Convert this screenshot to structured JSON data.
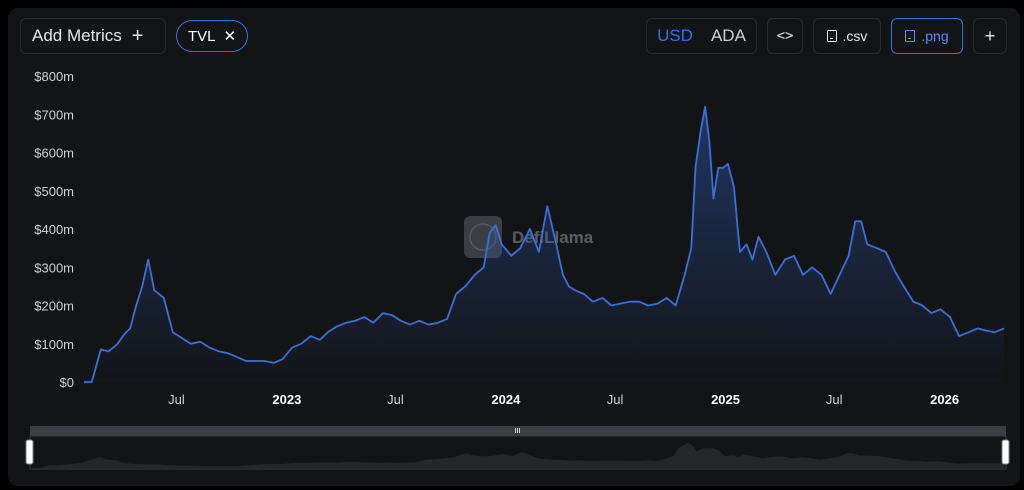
{
  "toolbar": {
    "add_metrics_label": "Add Metrics",
    "add_metrics_icon": "+",
    "metric_chip_label": "TVL",
    "metric_chip_remove_icon": "✕",
    "currency_options": [
      "USD",
      "ADA"
    ],
    "currency_selected": "USD",
    "embed_label": "<>",
    "csv_label": ".csv",
    "png_label": ".png",
    "more_label": "+"
  },
  "watermark": "DefiLlama",
  "colors": {
    "accent": "#2f6fe6",
    "line": "#3b6fd8",
    "background": "#131416"
  },
  "chart_data": {
    "type": "area",
    "series": [
      {
        "x": [
          "2022-01-28",
          "2022-02-10",
          "2022-02-25",
          "2022-03-10",
          "2022-03-25",
          "2022-04-05",
          "2022-04-15",
          "2022-04-25",
          "2022-05-05",
          "2022-05-15",
          "2022-05-25",
          "2022-06-10",
          "2022-06-25",
          "2022-07-10",
          "2022-07-25",
          "2022-08-10",
          "2022-08-25",
          "2022-09-10",
          "2022-09-25",
          "2022-10-10",
          "2022-10-25",
          "2022-11-10",
          "2022-11-25",
          "2022-12-10",
          "2022-12-25",
          "2023-01-10",
          "2023-01-25",
          "2023-02-10",
          "2023-02-25",
          "2023-03-10",
          "2023-03-25",
          "2023-04-10",
          "2023-04-25",
          "2023-05-10",
          "2023-05-25",
          "2023-06-10",
          "2023-06-25",
          "2023-07-10",
          "2023-07-25",
          "2023-08-10",
          "2023-08-25",
          "2023-09-10",
          "2023-09-25",
          "2023-10-10",
          "2023-10-25",
          "2023-11-10",
          "2023-11-25",
          "2023-12-05",
          "2023-12-15",
          "2023-12-25",
          "2024-01-10",
          "2024-01-25",
          "2024-02-10",
          "2024-02-25",
          "2024-03-10",
          "2024-03-25",
          "2024-04-05",
          "2024-04-15",
          "2024-04-25",
          "2024-05-10",
          "2024-05-25",
          "2024-06-10",
          "2024-06-25",
          "2024-07-10",
          "2024-07-25",
          "2024-08-10",
          "2024-08-25",
          "2024-09-10",
          "2024-09-25",
          "2024-10-10",
          "2024-10-25",
          "2024-11-05",
          "2024-11-12",
          "2024-11-20",
          "2024-11-28",
          "2024-12-05",
          "2024-12-12",
          "2024-12-20",
          "2024-12-28",
          "2025-01-05",
          "2025-01-15",
          "2025-01-25",
          "2025-02-05",
          "2025-02-15",
          "2025-02-25",
          "2025-03-10",
          "2025-03-25",
          "2025-04-10",
          "2025-04-25",
          "2025-05-10",
          "2025-05-25",
          "2025-06-10",
          "2025-06-25",
          "2025-07-10",
          "2025-07-25",
          "2025-08-05",
          "2025-08-15",
          "2025-08-25",
          "2025-09-10",
          "2025-09-25",
          "2025-10-10",
          "2025-10-25",
          "2025-11-10",
          "2025-11-25",
          "2025-12-10",
          "2025-12-25",
          "2026-01-10",
          "2026-01-25",
          "2026-02-10",
          "2026-02-25",
          "2026-03-10",
          "2026-03-25",
          "2026-04-10"
        ],
        "values": [
          0,
          0,
          85,
          80,
          100,
          125,
          140,
          200,
          250,
          320,
          240,
          220,
          130,
          115,
          100,
          105,
          90,
          80,
          75,
          65,
          55,
          55,
          55,
          50,
          60,
          90,
          100,
          120,
          110,
          130,
          145,
          155,
          160,
          170,
          155,
          180,
          175,
          160,
          150,
          160,
          150,
          155,
          165,
          230,
          250,
          280,
          300,
          390,
          410,
          360,
          330,
          350,
          400,
          340,
          460,
          360,
          280,
          250,
          240,
          230,
          210,
          220,
          200,
          205,
          210,
          210,
          200,
          205,
          220,
          200,
          280,
          350,
          560,
          650,
          720,
          630,
          480,
          560,
          560,
          570,
          510,
          340,
          360,
          320,
          380,
          340,
          280,
          320,
          330,
          280,
          300,
          280,
          230,
          280,
          330,
          420,
          420,
          360,
          350,
          340,
          290,
          250,
          210,
          200,
          180,
          190,
          170,
          120,
          130,
          140,
          135,
          130,
          140
        ]
      }
    ],
    "y_ticks": [
      "$0",
      "$100m",
      "$200m",
      "$300m",
      "$400m",
      "$500m",
      "$600m",
      "$700m",
      "$800m"
    ],
    "x_ticks": [
      {
        "label": "Jul",
        "bold": false
      },
      {
        "label": "2023",
        "bold": true
      },
      {
        "label": "Jul",
        "bold": false
      },
      {
        "label": "2024",
        "bold": true
      },
      {
        "label": "Jul",
        "bold": false
      },
      {
        "label": "2025",
        "bold": true
      },
      {
        "label": "Jul",
        "bold": false
      },
      {
        "label": "2026",
        "bold": true
      }
    ],
    "ylim": [
      0,
      800
    ],
    "y_unit": "USD",
    "grid": false,
    "legend": "none"
  }
}
